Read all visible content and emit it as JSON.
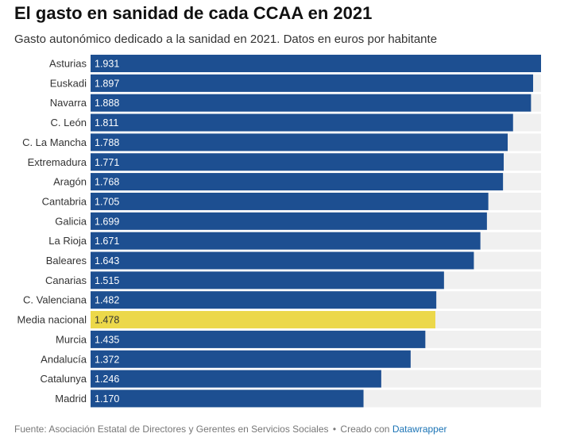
{
  "chart_data": {
    "type": "bar",
    "orientation": "horizontal",
    "title": "El gasto en sanidad de cada CCAA en 2021",
    "subtitle": "Gasto autonómico dedicado a la sanidad en 2021. Datos en euros por habitante",
    "categories": [
      "Asturias",
      "Euskadi",
      "Navarra",
      "C. León",
      "C. La Mancha",
      "Extremadura",
      "Aragón",
      "Cantabria",
      "Galicia",
      "La Rioja",
      "Baleares",
      "Canarias",
      "C. Valenciana",
      "Media nacional",
      "Murcia",
      "Andalucía",
      "Catalunya",
      "Madrid"
    ],
    "values": [
      1931,
      1897,
      1888,
      1811,
      1788,
      1771,
      1768,
      1705,
      1699,
      1671,
      1643,
      1515,
      1482,
      1478,
      1435,
      1372,
      1246,
      1170
    ],
    "value_labels": [
      "1.931",
      "1.897",
      "1.888",
      "1.811",
      "1.788",
      "1.771",
      "1.768",
      "1.705",
      "1.699",
      "1.671",
      "1.643",
      "1.515",
      "1.482",
      "1.478",
      "1.435",
      "1.372",
      "1.246",
      "1.170"
    ],
    "highlight": "Media nacional",
    "xlim": [
      0,
      1931
    ],
    "unit": "euros por habitante"
  },
  "colors": {
    "bar": "#1d4f91",
    "highlight_bar": "#ecd84a",
    "track": "#f0f0f0",
    "label_on_bar": "#ffffff",
    "label_on_highlight": "#333333",
    "link": "#1a73b5"
  },
  "footer": {
    "source": "Fuente: Asociación Estatal de Directores y Gerentes en Servicios Sociales",
    "separator": "•",
    "created_with": "Creado con",
    "tool": "Datawrapper"
  }
}
